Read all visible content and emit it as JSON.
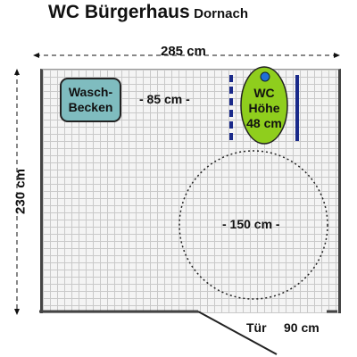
{
  "title": {
    "main": "WC Bürgerhaus",
    "place": "Dornach"
  },
  "dimensions": {
    "width": "285 cm",
    "height": "230 cm"
  },
  "sink": {
    "line1": "Wasch-",
    "line2": "Becken"
  },
  "distance_label": "- 85 cm -",
  "toilet": {
    "line1": "WC",
    "line2": "Höhe",
    "line3": "48 cm"
  },
  "turning_circle": "- 150 cm -",
  "door": {
    "label": "Tür",
    "width": "90 cm"
  },
  "colors": {
    "sink": "#7fbcbf",
    "toilet": "#8fce1d",
    "flush_button": "#1f6fd6",
    "grab_bars": "#1a2a8a",
    "walls": "#444444"
  }
}
